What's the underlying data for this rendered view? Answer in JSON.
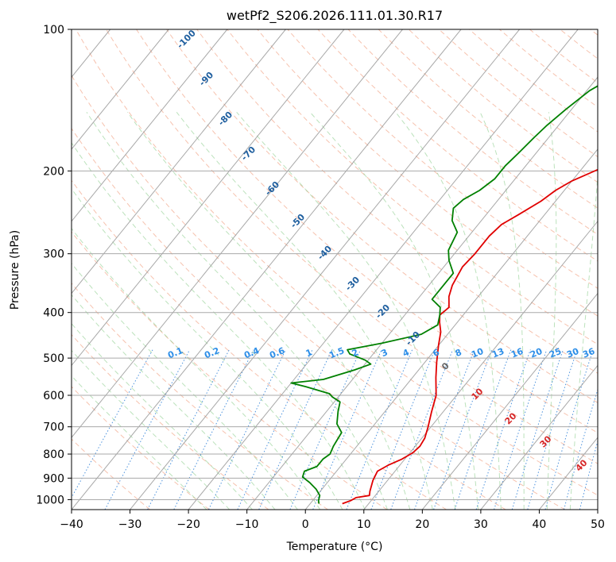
{
  "chart_data": {
    "type": "line",
    "title": "wetPf2_S206.2026.111.01.30.R17",
    "xlabel": "Temperature (°C)",
    "ylabel": "Pressure (hPa)",
    "xlim": [
      -40,
      50
    ],
    "ylim": [
      1050,
      100
    ],
    "y_scale": "log",
    "x_ticks": [
      -40,
      -30,
      -20,
      -10,
      0,
      10,
      20,
      30,
      40,
      50
    ],
    "y_ticks": [
      100,
      200,
      300,
      400,
      500,
      600,
      700,
      800,
      900,
      1000
    ],
    "grid": true,
    "series": [
      {
        "color": "#e00000",
        "values": [
          [
            5.5,
            1020
          ],
          [
            6.5,
            1005
          ],
          [
            7,
            990
          ],
          [
            9,
            980
          ],
          [
            8.5,
            960
          ],
          [
            7.5,
            910
          ],
          [
            7,
            870
          ],
          [
            8,
            845
          ],
          [
            9.5,
            820
          ],
          [
            10.5,
            795
          ],
          [
            10.8,
            770
          ],
          [
            10.5,
            740
          ],
          [
            9.5,
            700
          ],
          [
            8,
            650
          ],
          [
            6.5,
            600
          ],
          [
            4,
            550
          ],
          [
            2,
            510
          ],
          [
            0,
            470
          ],
          [
            -1.5,
            440
          ],
          [
            -3,
            420
          ],
          [
            -4,
            405
          ],
          [
            -3.5,
            390
          ],
          [
            -5,
            370
          ],
          [
            -6,
            350
          ],
          [
            -6.8,
            320
          ],
          [
            -6.5,
            300
          ],
          [
            -6.5,
            275
          ],
          [
            -6,
            260
          ],
          [
            -4.5,
            248
          ],
          [
            -2.5,
            232
          ],
          [
            -1.5,
            220
          ],
          [
            0,
            210
          ],
          [
            3,
            198
          ],
          [
            5.5,
            186
          ],
          [
            9,
            168
          ],
          [
            12,
            150
          ],
          [
            15,
            136
          ],
          [
            17,
            122
          ],
          [
            19.5,
            110
          ],
          [
            21,
            104
          ],
          [
            24,
            100
          ]
        ]
      },
      {
        "color": "#008000",
        "values": [
          [
            1.5,
            1020
          ],
          [
            1,
            1005
          ],
          [
            0.5,
            980
          ],
          [
            -1,
            950
          ],
          [
            -3,
            920
          ],
          [
            -5,
            895
          ],
          [
            -5.5,
            870
          ],
          [
            -4,
            850
          ],
          [
            -4,
            820
          ],
          [
            -3.5,
            800
          ],
          [
            -4,
            770
          ],
          [
            -4.5,
            720
          ],
          [
            -6.5,
            690
          ],
          [
            -8,
            650
          ],
          [
            -9,
            620
          ],
          [
            -11,
            605
          ],
          [
            -12,
            595
          ],
          [
            -17,
            575
          ],
          [
            -20,
            565
          ],
          [
            -15,
            555
          ],
          [
            -11,
            530
          ],
          [
            -9,
            515
          ],
          [
            -10.5,
            505
          ],
          [
            -14,
            490
          ],
          [
            -15,
            480
          ],
          [
            -10,
            465
          ],
          [
            -4.5,
            445
          ],
          [
            -3,
            425
          ],
          [
            -4,
            405
          ],
          [
            -5,
            390
          ],
          [
            -7.5,
            375
          ],
          [
            -7.5,
            350
          ],
          [
            -7.5,
            330
          ],
          [
            -10,
            310
          ],
          [
            -11.5,
            295
          ],
          [
            -12.5,
            270
          ],
          [
            -15,
            255
          ],
          [
            -16.5,
            240
          ],
          [
            -16,
            230
          ],
          [
            -14.5,
            220
          ],
          [
            -13.5,
            208
          ],
          [
            -13.5,
            195
          ],
          [
            -13,
            183
          ],
          [
            -12.5,
            170
          ],
          [
            -12,
            160
          ],
          [
            -11,
            148
          ],
          [
            -9.5,
            135
          ],
          [
            -7,
            125
          ],
          [
            -3.5,
            115
          ],
          [
            -0.5,
            108
          ],
          [
            3,
            100
          ]
        ]
      }
    ],
    "dry_adiabat_labels": [
      "-100",
      "-90",
      "-80",
      "-70",
      "-60",
      "-50",
      "-40",
      "-30",
      "-20",
      "-10"
    ],
    "mixing_ratio_labels": [
      "0.1",
      "0.2",
      "0.4",
      "0.6",
      "1",
      "1.5",
      "2",
      "3",
      "4",
      "6",
      "8",
      "10",
      "13",
      "16",
      "20",
      "25",
      "30",
      "36"
    ],
    "moist_adiabat_labels": [
      "0",
      "10",
      "20",
      "30",
      "40"
    ]
  }
}
